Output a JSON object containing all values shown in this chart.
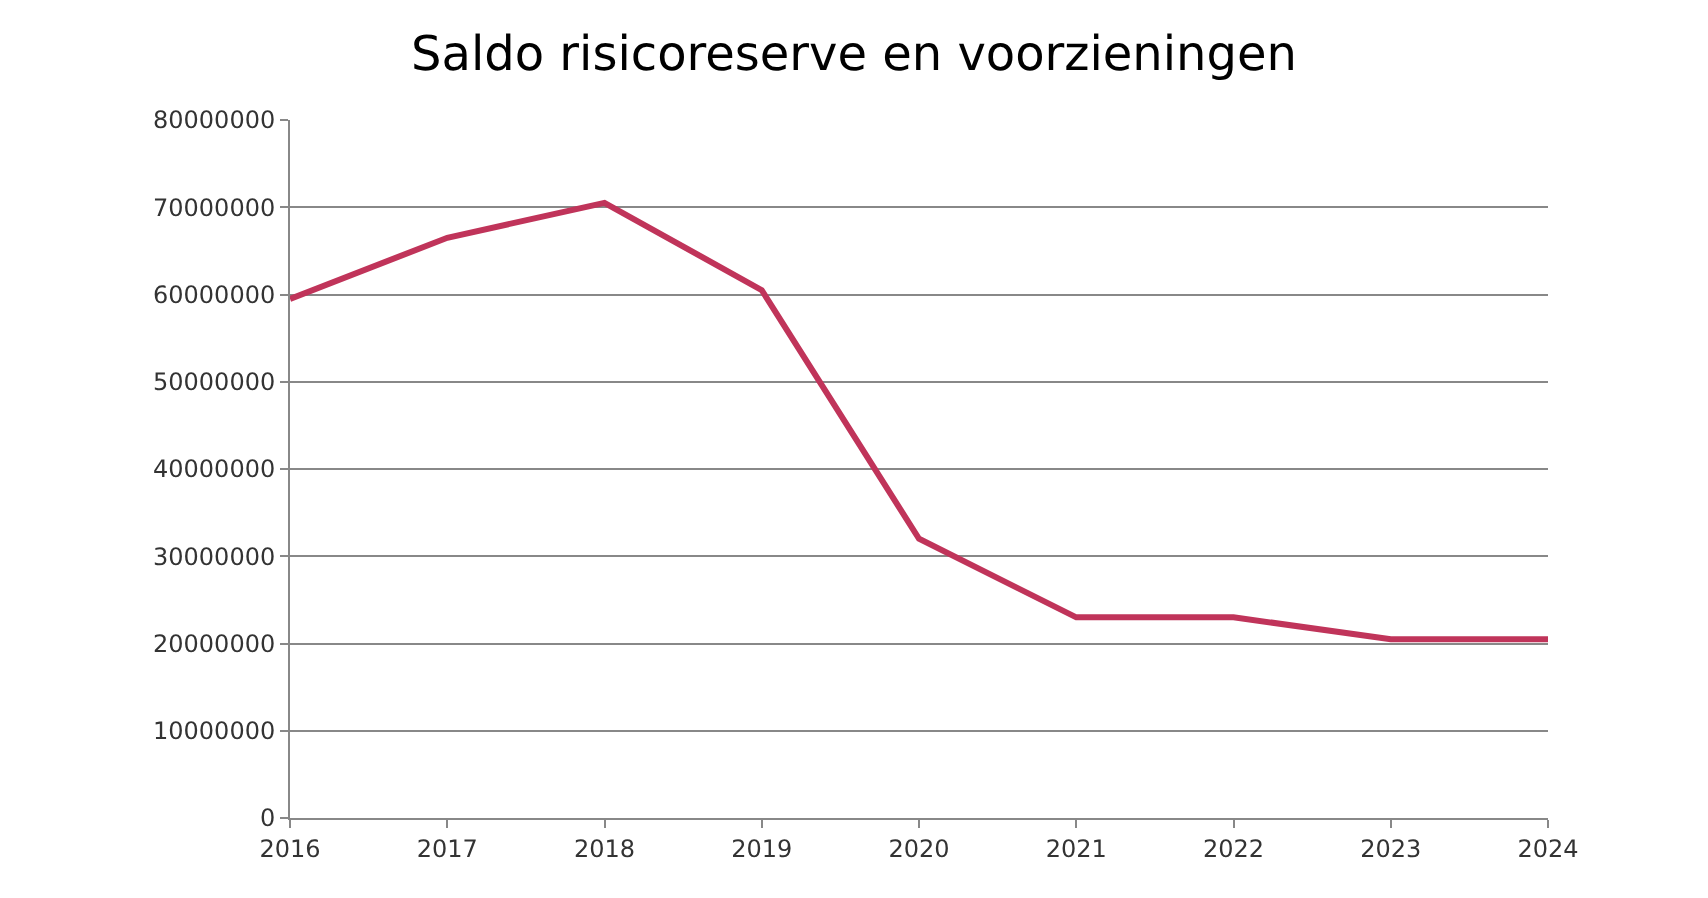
{
  "chart_data": {
    "type": "line",
    "title": "Saldo risicoreserve en voorzieningen",
    "categories": [
      "2016",
      "2017",
      "2018",
      "2019",
      "2020",
      "2021",
      "2022",
      "2023",
      "2024"
    ],
    "series": [
      {
        "color": "#c0345a",
        "values": [
          59500000,
          66500000,
          70500000,
          60500000,
          32000000,
          23000000,
          23000000,
          20500000,
          20500000
        ]
      }
    ],
    "ylim": [
      0,
      80000000
    ],
    "yticks": [
      0,
      10000000,
      20000000,
      30000000,
      40000000,
      50000000,
      60000000,
      70000000,
      80000000
    ],
    "grid": "y",
    "marker": "none",
    "line_style": "solid"
  }
}
